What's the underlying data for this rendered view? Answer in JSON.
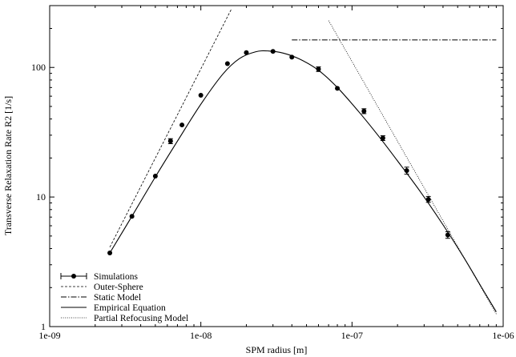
{
  "chart_data": {
    "type": "scatter",
    "title": "",
    "xlabel": "SPM radius [m]",
    "ylabel": "Transverse Relaxation Rate R2 [1/s]",
    "xscale": "log",
    "yscale": "log",
    "xlim": [
      1e-09,
      1e-06
    ],
    "ylim": [
      1,
      300
    ],
    "x_ticks": [
      1e-09,
      1e-08,
      1e-07,
      1e-06
    ],
    "x_tick_labels": [
      "1e-09",
      "1e-08",
      "1e-07",
      "1e-06"
    ],
    "y_ticks": [
      1,
      10,
      100
    ],
    "y_tick_labels": [
      "1",
      "10",
      "100"
    ],
    "grid": false,
    "legend_position": "bottom-left",
    "series": [
      {
        "name": "Simulations",
        "style": "points-with-errorbars",
        "x": [
          2.5e-09,
          3.5e-09,
          5e-09,
          6.3e-09,
          7.5e-09,
          1e-08,
          1.5e-08,
          2e-08,
          3e-08,
          4e-08,
          6e-08,
          8e-08,
          1.2e-07,
          1.6e-07,
          2.3e-07,
          3.2e-07,
          4.3e-07
        ],
        "y": [
          3.7,
          7.1,
          14.5,
          27,
          36,
          61,
          107,
          130,
          133,
          120,
          97,
          69,
          46,
          28.5,
          16,
          9.6,
          5.1
        ],
        "yerr": [
          0,
          0,
          0,
          1.2,
          0,
          0,
          0,
          0,
          0,
          0,
          4,
          0,
          2,
          1.2,
          1,
          0.5,
          0.3
        ]
      },
      {
        "name": "Outer-Sphere",
        "style": "short-dash",
        "x": [
          2.5e-09,
          1.6e-08
        ],
        "y": [
          4.1,
          285
        ]
      },
      {
        "name": "Static Model",
        "style": "dash-dot",
        "x": [
          4e-08,
          9e-07
        ],
        "y": [
          163,
          163
        ]
      },
      {
        "name": "Empirical Equation",
        "style": "solid",
        "x": [
          2.5e-09,
          3.5e-09,
          5e-09,
          7e-09,
          1e-08,
          1.4e-08,
          1.8e-08,
          2.3e-08,
          2.8e-08,
          3.5e-08,
          4.5e-08,
          6e-08,
          8e-08,
          1.1e-07,
          1.5e-07,
          2e-07,
          2.8e-07,
          4e-07,
          5.5e-07,
          7.5e-07,
          9e-07
        ],
        "y": [
          3.7,
          7.1,
          14.3,
          27,
          52,
          89,
          117,
          132,
          134,
          129,
          116,
          95,
          70,
          46,
          29.5,
          19,
          11.2,
          6.1,
          3.4,
          1.85,
          1.3
        ]
      },
      {
        "name": "Partial Refocusing Model",
        "style": "dotted",
        "x": [
          7e-08,
          9e-07
        ],
        "y": [
          230,
          1.25
        ]
      }
    ]
  }
}
